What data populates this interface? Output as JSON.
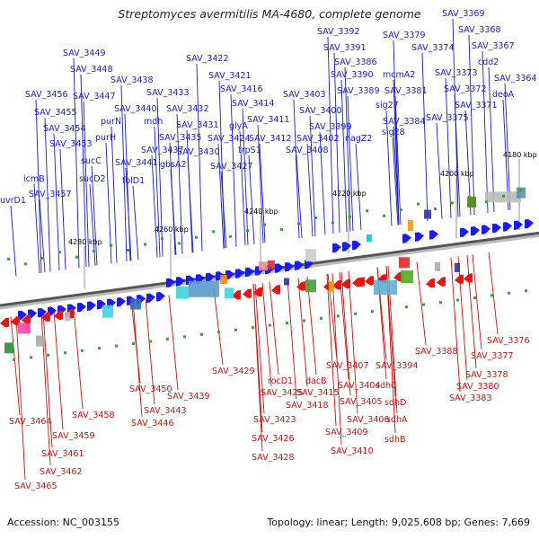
{
  "title": "Streptomyces avermitilis MA-4680, complete genome",
  "footer": {
    "accession": "Accession: NC_003155",
    "summary": "Topology: linear; Length: 9,025,608 bp; Genes: 7,669"
  },
  "colors": {
    "forward_gene": "#1a1aff",
    "reverse_gene": "#ee1111",
    "axis": "#555555",
    "forward_label": "#1a1ad0",
    "reverse_label": "#cc1010"
  },
  "scale_labels": [
    "4180 kbp",
    "4200 kbp",
    "4220 kbp",
    "4240 kbp",
    "4260 kbp",
    "4280 kbp"
  ],
  "forward_labels": [
    "SAV_3369",
    "SAV_3368",
    "SAV_3367",
    "cdd2",
    "SAV_3364",
    "deoA",
    "SAV_3392",
    "SAV_3391",
    "SAV_3386",
    "SAV_3379",
    "SAV_3374",
    "SAV_3373",
    "SAV_3372",
    "SAV_3371",
    "mcmA2",
    "SAV_3390",
    "SAV_3389",
    "SAV_3381",
    "sig27",
    "SAV_3384",
    "sig28",
    "SAV_3375",
    "SAV_3403",
    "SAV_3400",
    "SAV_3399",
    "SAV_3402",
    "nagZ2",
    "SAV_3408",
    "SAV_3449",
    "SAV_3448",
    "SAV_3447",
    "SAV_3438",
    "SAV_3422",
    "SAV_3421",
    "SAV_3416",
    "SAV_3414",
    "SAV_3411",
    "SAV_3412",
    "SAV_3433",
    "SAV_3432",
    "SAV_3431",
    "SAV_3430",
    "SAV_3424",
    "SAV_3427",
    "glyA",
    "trpS1",
    "SAV_3456",
    "SAV_3455",
    "SAV_3454",
    "SAV_3453",
    "purN",
    "SAV_3440",
    "mdh",
    "SAV_3435",
    "purH",
    "SAV_3437",
    "gbsA2",
    "SAV_3441",
    "folD1",
    "sucC",
    "sucD2",
    "icmB",
    "SAV_3457",
    "uvrD1"
  ],
  "reverse_labels": [
    "SAV_3376",
    "SAV_3377",
    "SAV_3378",
    "SAV_3380",
    "SAV_3383",
    "SAV_3388",
    "SAV_3394",
    "SAV_3407",
    "sdhC",
    "SAV_3404",
    "sdhD",
    "SAV_3405",
    "sdhA",
    "SAV_3406",
    "sdhB",
    "SAV_3409",
    "SAV_3410",
    "SAV_3415",
    "dacB",
    "SAV_3418",
    "rocD1",
    "SAV_3425",
    "SAV_3423",
    "SAV_3426",
    "SAV_3428",
    "SAV_3429",
    "SAV_3450",
    "SAV_3439",
    "SAV_3443",
    "SAV_3446",
    "SAV_3458",
    "SAV_3464",
    "SAV_3459",
    "SAV_3461",
    "SAV_3462",
    "SAV_3465"
  ]
}
